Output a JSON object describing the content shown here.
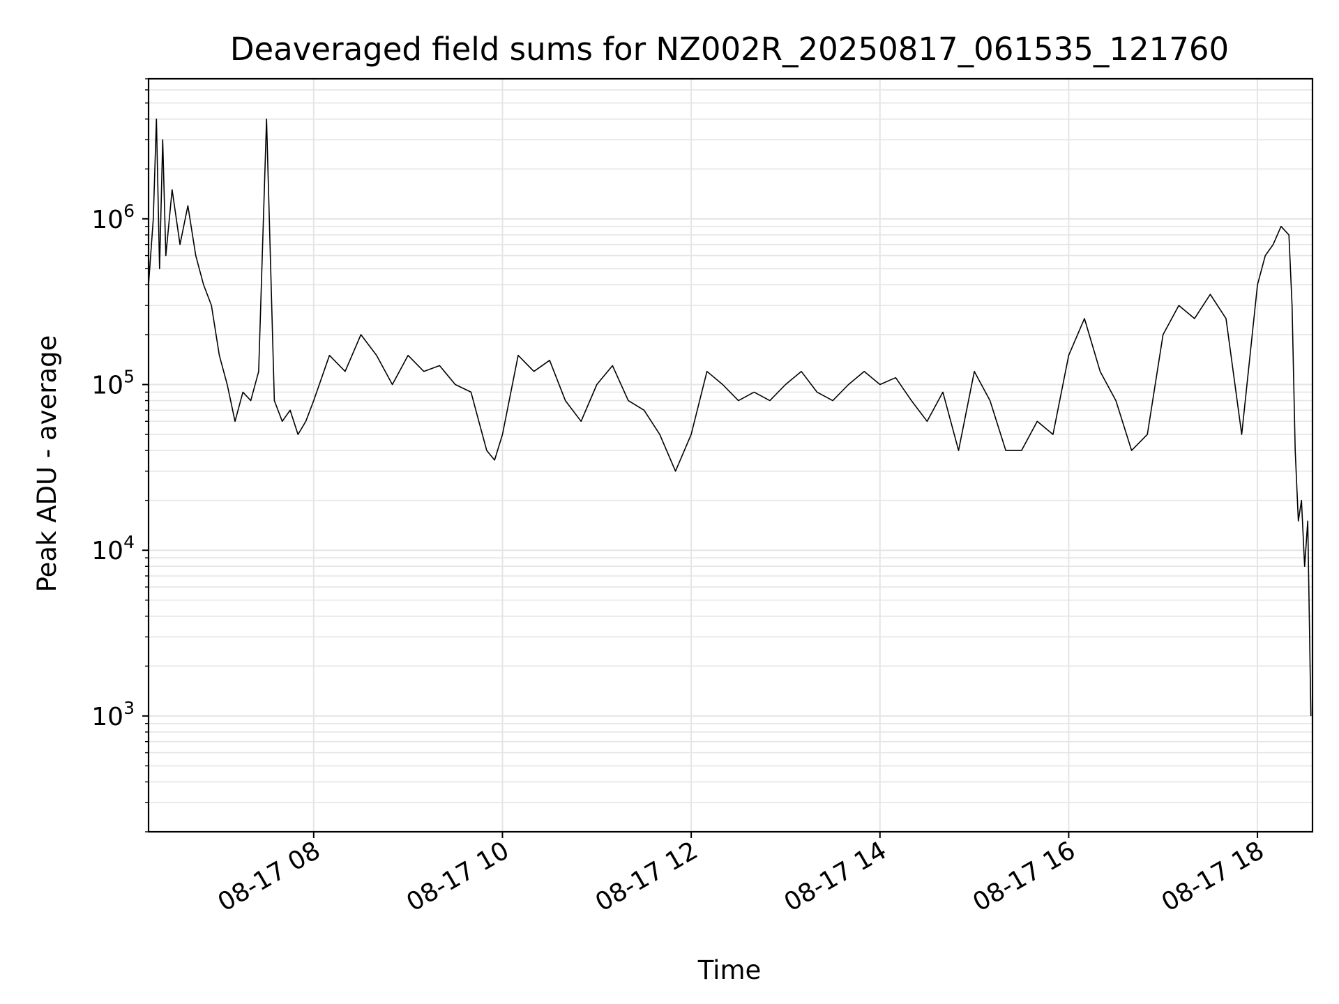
{
  "chart_data": {
    "type": "line",
    "title": "Deaveraged field sums for NZ002R_20250817_061535_121760",
    "xlabel": "Time",
    "ylabel": "Peak ADU - average",
    "yscale": "log",
    "ylim": [
      200,
      7000000
    ],
    "xlim": [
      "2025-08-17 06:15",
      "2025-08-17 18:35"
    ],
    "grid": true,
    "line_color": "#000000",
    "grid_color": "#e5e5e5",
    "x_ticks": [
      {
        "value": "2025-08-17 08:00",
        "label": "08-17 08"
      },
      {
        "value": "2025-08-17 10:00",
        "label": "08-17 10"
      },
      {
        "value": "2025-08-17 12:00",
        "label": "08-17 12"
      },
      {
        "value": "2025-08-17 14:00",
        "label": "08-17 14"
      },
      {
        "value": "2025-08-17 16:00",
        "label": "08-17 16"
      },
      {
        "value": "2025-08-17 18:00",
        "label": "08-17 18"
      }
    ],
    "y_ticks": [
      {
        "value": 1000,
        "base": "10",
        "exp": "3"
      },
      {
        "value": 10000,
        "base": "10",
        "exp": "4"
      },
      {
        "value": 100000,
        "base": "10",
        "exp": "5"
      },
      {
        "value": 1000000,
        "base": "10",
        "exp": "6"
      }
    ],
    "series": [
      {
        "x": [
          "2025-08-17 06:15",
          "2025-08-17 06:18",
          "2025-08-17 06:20",
          "2025-08-17 06:22",
          "2025-08-17 06:24",
          "2025-08-17 06:26",
          "2025-08-17 06:30",
          "2025-08-17 06:35",
          "2025-08-17 06:40",
          "2025-08-17 06:45",
          "2025-08-17 06:50",
          "2025-08-17 06:55",
          "2025-08-17 07:00",
          "2025-08-17 07:05",
          "2025-08-17 07:10",
          "2025-08-17 07:15",
          "2025-08-17 07:20",
          "2025-08-17 07:25",
          "2025-08-17 07:30",
          "2025-08-17 07:35",
          "2025-08-17 07:40",
          "2025-08-17 07:45",
          "2025-08-17 07:50",
          "2025-08-17 07:55",
          "2025-08-17 08:00",
          "2025-08-17 08:10",
          "2025-08-17 08:20",
          "2025-08-17 08:30",
          "2025-08-17 08:40",
          "2025-08-17 08:50",
          "2025-08-17 09:00",
          "2025-08-17 09:10",
          "2025-08-17 09:20",
          "2025-08-17 09:30",
          "2025-08-17 09:40",
          "2025-08-17 09:45",
          "2025-08-17 09:50",
          "2025-08-17 09:55",
          "2025-08-17 10:00",
          "2025-08-17 10:10",
          "2025-08-17 10:20",
          "2025-08-17 10:30",
          "2025-08-17 10:40",
          "2025-08-17 10:50",
          "2025-08-17 11:00",
          "2025-08-17 11:10",
          "2025-08-17 11:20",
          "2025-08-17 11:30",
          "2025-08-17 11:40",
          "2025-08-17 11:50",
          "2025-08-17 12:00",
          "2025-08-17 12:10",
          "2025-08-17 12:20",
          "2025-08-17 12:30",
          "2025-08-17 12:40",
          "2025-08-17 12:50",
          "2025-08-17 13:00",
          "2025-08-17 13:10",
          "2025-08-17 13:20",
          "2025-08-17 13:30",
          "2025-08-17 13:40",
          "2025-08-17 13:50",
          "2025-08-17 14:00",
          "2025-08-17 14:10",
          "2025-08-17 14:20",
          "2025-08-17 14:30",
          "2025-08-17 14:40",
          "2025-08-17 14:50",
          "2025-08-17 15:00",
          "2025-08-17 15:10",
          "2025-08-17 15:20",
          "2025-08-17 15:30",
          "2025-08-17 15:40",
          "2025-08-17 15:50",
          "2025-08-17 16:00",
          "2025-08-17 16:10",
          "2025-08-17 16:20",
          "2025-08-17 16:30",
          "2025-08-17 16:40",
          "2025-08-17 16:50",
          "2025-08-17 17:00",
          "2025-08-17 17:10",
          "2025-08-17 17:20",
          "2025-08-17 17:30",
          "2025-08-17 17:40",
          "2025-08-17 17:50",
          "2025-08-17 18:00",
          "2025-08-17 18:05",
          "2025-08-17 18:10",
          "2025-08-17 18:15",
          "2025-08-17 18:20",
          "2025-08-17 18:22",
          "2025-08-17 18:24",
          "2025-08-17 18:26",
          "2025-08-17 18:28",
          "2025-08-17 18:30",
          "2025-08-17 18:32",
          "2025-08-17 18:34"
        ],
        "y": [
          400000,
          1000000,
          4000000,
          500000,
          3000000,
          600000,
          1500000,
          700000,
          1200000,
          600000,
          400000,
          300000,
          150000,
          100000,
          60000,
          90000,
          80000,
          120000,
          4000000,
          80000,
          60000,
          70000,
          50000,
          60000,
          80000,
          150000,
          120000,
          200000,
          150000,
          100000,
          150000,
          120000,
          130000,
          100000,
          90000,
          60000,
          40000,
          35000,
          50000,
          150000,
          120000,
          140000,
          80000,
          60000,
          100000,
          130000,
          80000,
          70000,
          50000,
          30000,
          50000,
          120000,
          100000,
          80000,
          90000,
          80000,
          100000,
          120000,
          90000,
          80000,
          100000,
          120000,
          100000,
          110000,
          80000,
          60000,
          90000,
          40000,
          120000,
          80000,
          40000,
          40000,
          60000,
          50000,
          150000,
          250000,
          120000,
          80000,
          40000,
          50000,
          200000,
          300000,
          250000,
          350000,
          250000,
          50000,
          400000,
          600000,
          700000,
          900000,
          800000,
          300000,
          40000,
          15000,
          20000,
          8000,
          15000,
          1000
        ]
      }
    ]
  }
}
